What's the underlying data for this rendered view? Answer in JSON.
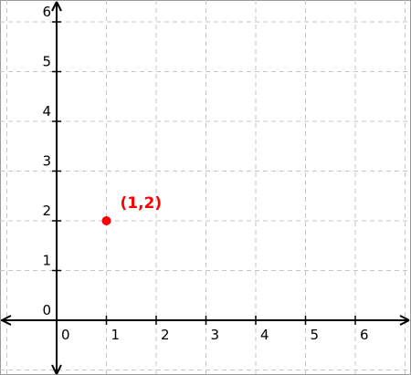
{
  "chart_data": {
    "type": "scatter",
    "title": "",
    "xlabel": "",
    "ylabel": "",
    "xlim": [
      -1.1,
      7.0
    ],
    "ylim": [
      -1.2,
      6.35
    ],
    "x_ticks": [
      0,
      1,
      2,
      3,
      4,
      5,
      6
    ],
    "y_ticks": [
      0,
      1,
      2,
      3,
      4,
      5,
      6
    ],
    "x_tick_labels": [
      "0",
      "1",
      "2",
      "3",
      "4",
      "5",
      "6"
    ],
    "y_tick_labels": [
      "0",
      "1",
      "2",
      "3",
      "4",
      "5",
      "6"
    ],
    "grid": true,
    "grid_style": "dashed",
    "grid_color": "#c4c4c4",
    "axis_color": "#000000",
    "axes_with_arrows": true,
    "points": [
      {
        "x": 1,
        "y": 2,
        "label": "(1,2)",
        "color": "#ff0000"
      }
    ]
  }
}
